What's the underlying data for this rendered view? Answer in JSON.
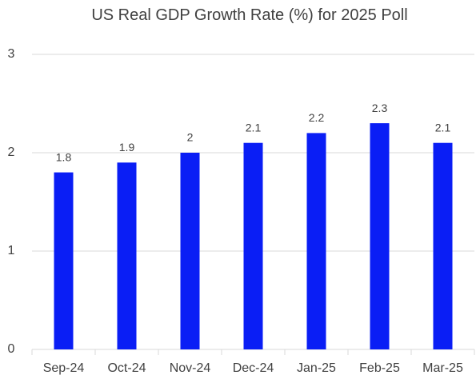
{
  "chart_data": {
    "type": "bar",
    "title": "US Real GDP Growth Rate (%) for 2025 Poll",
    "categories": [
      "Sep-24",
      "Oct-24",
      "Nov-24",
      "Dec-24",
      "Jan-25",
      "Feb-25",
      "Mar-25"
    ],
    "values": [
      1.8,
      1.9,
      2,
      2.1,
      2.2,
      2.3,
      2.1
    ],
    "color": "#0a1ef5",
    "ylim": [
      0,
      3
    ],
    "yticks": [
      0,
      1,
      2,
      3
    ],
    "grid": true
  }
}
